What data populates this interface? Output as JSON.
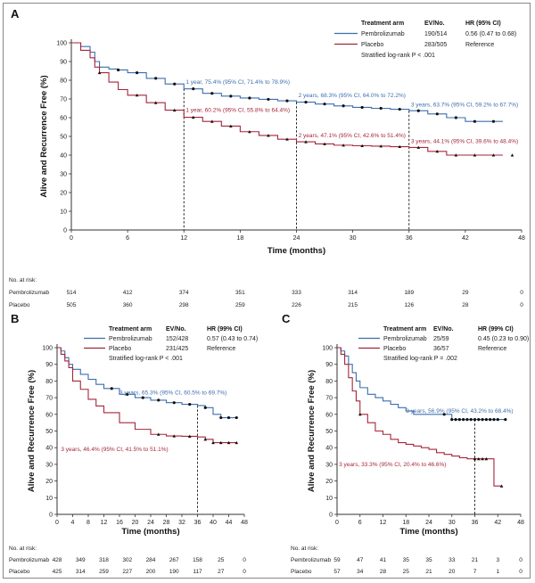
{
  "colors": {
    "pembro": "#3c6eac",
    "placebo": "#a5263a",
    "axis": "#333333",
    "censor": "#111111"
  },
  "chart_data": [
    {
      "panel": "A",
      "type": "line",
      "title": "",
      "xlabel": "Time (months)",
      "ylabel": "Alive and Recurrence Free (%)",
      "xlim": [
        0,
        48
      ],
      "ylim": [
        0,
        100
      ],
      "xticks": [
        0,
        6,
        12,
        18,
        24,
        30,
        36,
        42,
        48
      ],
      "yticks": [
        0,
        10,
        20,
        30,
        40,
        50,
        60,
        70,
        80,
        90,
        100
      ],
      "xtick_labels": [
        "0",
        "6",
        "12",
        "18",
        "24",
        "30",
        "36",
        "42",
        "48"
      ],
      "ytick_labels": [
        "0",
        "10",
        "20",
        "30",
        "40",
        "50",
        "60",
        "70",
        "80",
        "90",
        "100"
      ],
      "legend": {
        "headers": [
          "Treatment arm",
          "EV/No.",
          "HR (95% CI)"
        ],
        "rows": [
          {
            "name": "Pembrolizumab",
            "ev": "190/514",
            "hr": "0.56 (0.47 to 0.68)"
          },
          {
            "name": "Placebo",
            "ev": "283/505",
            "hr": "Reference"
          }
        ],
        "test": "Stratified log-rank P < .001"
      },
      "series": [
        {
          "name": "Pembrolizumab",
          "color_key": "pembro",
          "x": [
            0,
            1,
            2,
            2.5,
            3,
            4,
            5,
            6,
            8,
            10,
            12,
            14,
            16,
            18,
            20,
            22,
            24,
            26,
            28,
            30,
            32,
            34,
            36,
            38,
            40,
            42,
            44,
            46
          ],
          "y": [
            100,
            98,
            95,
            90,
            87,
            86,
            85.5,
            84,
            81,
            78,
            75.4,
            73,
            71.5,
            70.5,
            69.8,
            69,
            68.3,
            67.3,
            66.3,
            65.5,
            65,
            64.5,
            63.7,
            62,
            60,
            58,
            58,
            58
          ],
          "censor_x": [
            5,
            7,
            9,
            11,
            13,
            15,
            17,
            19,
            21,
            23,
            25,
            27,
            29,
            31,
            33,
            35,
            37,
            39,
            41,
            43,
            45
          ]
        },
        {
          "name": "Placebo",
          "color_key": "placebo",
          "x": [
            0,
            1,
            2,
            2.5,
            3,
            4,
            5,
            6,
            8,
            10,
            12,
            14,
            16,
            18,
            20,
            22,
            24,
            26,
            28,
            30,
            32,
            34,
            36,
            38,
            40,
            42,
            44,
            46
          ],
          "y": [
            100,
            96,
            92,
            87,
            84,
            79,
            75,
            72,
            68,
            64,
            60.2,
            58,
            55.5,
            52.5,
            50.5,
            48.5,
            47.1,
            46,
            45.3,
            45,
            44.8,
            44.5,
            44.1,
            42,
            40,
            40,
            40,
            40
          ],
          "censor_x": [
            3,
            7,
            9,
            11,
            13,
            15,
            17,
            19,
            21,
            23,
            25,
            27,
            29,
            31,
            33,
            35,
            37,
            39,
            41,
            43,
            45,
            47
          ]
        }
      ],
      "marks": [
        12,
        24,
        36
      ],
      "annotations": [
        {
          "text": "1 year, 75.4% (95% CI, 71.4% to 78.9%)",
          "x": 12.2,
          "y": 78,
          "series": "pembro"
        },
        {
          "text": "2 years, 68.3% (95% CI, 64.0% to 72.2%)",
          "x": 24.2,
          "y": 71,
          "series": "pembro"
        },
        {
          "text": "3 years, 63.7% (95% CI, 59.2% to 67.7%)",
          "x": 36.2,
          "y": 66,
          "series": "pembro"
        },
        {
          "text": "1 year, 60.2% (95% CI, 55.8% to 64.4%)",
          "x": 12.2,
          "y": 63,
          "series": "placebo"
        },
        {
          "text": "2 years, 47.1% (95% CI, 42.6% to 51.4%)",
          "x": 24.2,
          "y": 49.5,
          "series": "placebo"
        },
        {
          "text": "3 years, 44.1% (95% CI, 39.6% to 48.4%)",
          "x": 36.2,
          "y": 46.5,
          "series": "placebo"
        }
      ],
      "risk_table": {
        "title": "No. at risk:",
        "rows": [
          {
            "name": "Pembrolizumab",
            "values": [
              "514",
              "412",
              "374",
              "351",
              "333",
              "314",
              "189",
              "29",
              "0"
            ]
          },
          {
            "name": "Placebo",
            "values": [
              "505",
              "360",
              "298",
              "259",
              "226",
              "215",
              "126",
              "28",
              "0"
            ]
          }
        ]
      }
    },
    {
      "panel": "B",
      "type": "line",
      "title": "",
      "xlabel": "Time (months)",
      "ylabel": "Alive and Recurrence Free (%)",
      "xlim": [
        0,
        48
      ],
      "ylim": [
        0,
        100
      ],
      "xticks": [
        0,
        4,
        8,
        12,
        16,
        20,
        24,
        28,
        32,
        36,
        40,
        44,
        48
      ],
      "yticks": [
        0,
        10,
        20,
        30,
        40,
        50,
        60,
        70,
        80,
        90,
        100
      ],
      "xtick_labels": [
        "0",
        "4",
        "8",
        "12",
        "16",
        "20",
        "24",
        "28",
        "32",
        "36",
        "40",
        "44",
        "48"
      ],
      "ytick_labels": [
        "0",
        "10",
        "20",
        "30",
        "40",
        "50",
        "60",
        "70",
        "80",
        "90",
        "100"
      ],
      "legend": {
        "headers": [
          "Treatment arm",
          "EV/No.",
          "HR (99% CI)"
        ],
        "rows": [
          {
            "name": "Pembrolizumab",
            "ev": "152/428",
            "hr": "0.57 (0.43 to 0.74)"
          },
          {
            "name": "Placebo",
            "ev": "231/425",
            "hr": "Reference"
          }
        ],
        "test": "Stratified log-rank P < .001"
      },
      "series": [
        {
          "name": "Pembrolizumab",
          "color_key": "pembro",
          "x": [
            0,
            1,
            2,
            3,
            4,
            6,
            8,
            10,
            12,
            16,
            20,
            24,
            28,
            32,
            36,
            38,
            40,
            42,
            44,
            46
          ],
          "y": [
            100,
            98,
            94,
            90,
            87,
            84,
            81,
            78,
            75.5,
            72,
            70,
            68.5,
            67,
            66,
            65.3,
            64,
            60,
            58,
            58,
            58
          ],
          "censor_x": [
            14,
            18,
            22,
            26,
            30,
            34,
            38,
            42,
            44,
            46
          ]
        },
        {
          "name": "Placebo",
          "color_key": "placebo",
          "x": [
            0,
            1,
            2,
            3,
            4,
            6,
            8,
            10,
            12,
            16,
            20,
            24,
            28,
            32,
            36,
            38,
            40,
            42,
            44,
            46
          ],
          "y": [
            100,
            96,
            92,
            88,
            80,
            75,
            69,
            65,
            61,
            55,
            51,
            48,
            47,
            46.8,
            46.4,
            45,
            43,
            43,
            43,
            43
          ],
          "censor_x": [
            26,
            30,
            34,
            38,
            40,
            42,
            44,
            46
          ]
        }
      ],
      "marks": [
        36
      ],
      "annotations": [
        {
          "text": "3 years, 65.3% (95% CI, 60.5% to 69.7%)",
          "x": 16,
          "y": 72,
          "series": "pembro"
        },
        {
          "text": "3 years, 46.4% (95% CI, 41.5% to 51.1%)",
          "x": 1,
          "y": 38,
          "series": "placebo"
        }
      ],
      "risk_table": {
        "title": "No. at risk:",
        "rows": [
          {
            "name": "Pembrolizumab",
            "values": [
              "428",
              "349",
              "318",
              "302",
              "284",
              "267",
              "158",
              "25",
              "0"
            ]
          },
          {
            "name": "Placebo",
            "values": [
              "425",
              "314",
              "259",
              "227",
              "200",
              "190",
              "117",
              "27",
              "0"
            ]
          }
        ]
      }
    },
    {
      "panel": "C",
      "type": "line",
      "title": "",
      "xlabel": "Time (months)",
      "ylabel": "Alive and Recurrence Free (%)",
      "xlim": [
        0,
        48
      ],
      "ylim": [
        0,
        100
      ],
      "xticks": [
        0,
        6,
        12,
        18,
        24,
        30,
        36,
        42,
        48
      ],
      "yticks": [
        0,
        10,
        20,
        30,
        40,
        50,
        60,
        70,
        80,
        90,
        100
      ],
      "xtick_labels": [
        "0",
        "6",
        "12",
        "18",
        "24",
        "30",
        "36",
        "42",
        "48"
      ],
      "ytick_labels": [
        "0",
        "10",
        "20",
        "30",
        "40",
        "50",
        "60",
        "70",
        "80",
        "90",
        "100"
      ],
      "legend": {
        "headers": [
          "Treatment arm",
          "EV/No.",
          "HR (99% CI)"
        ],
        "rows": [
          {
            "name": "Pembrolizumab",
            "ev": "25/59",
            "hr": "0.45 (0.23 to 0.90)"
          },
          {
            "name": "Placebo",
            "ev": "36/57",
            "hr": "Reference"
          }
        ],
        "test": "Stratified log-rank P = .002"
      },
      "series": [
        {
          "name": "Pembrolizumab",
          "color_key": "pembro",
          "x": [
            0,
            1,
            2,
            3,
            4,
            5,
            6,
            8,
            10,
            12,
            14,
            16,
            18,
            20,
            24,
            28,
            30,
            34,
            36,
            40,
            44
          ],
          "y": [
            100,
            98,
            95,
            90,
            85,
            80,
            76,
            72,
            70,
            68,
            66,
            64,
            62,
            60,
            60,
            60,
            56.9,
            56.9,
            56.9,
            56.9,
            56.9
          ],
          "censor_x": [
            28,
            30,
            31,
            32,
            33,
            34,
            35,
            36,
            37,
            38,
            39,
            40,
            41,
            42,
            44
          ]
        },
        {
          "name": "Placebo",
          "color_key": "placebo",
          "x": [
            0,
            1,
            2,
            3,
            4,
            5,
            6,
            8,
            10,
            12,
            14,
            16,
            18,
            20,
            22,
            24,
            26,
            28,
            30,
            32,
            34,
            36,
            40,
            41,
            43
          ],
          "y": [
            100,
            96,
            90,
            82,
            74,
            68,
            60,
            55,
            50,
            48,
            45,
            43,
            42,
            41,
            40,
            39,
            37,
            36,
            35,
            34,
            33.3,
            33.3,
            33.3,
            17,
            17
          ],
          "censor_x": [
            6,
            36,
            37,
            38,
            39,
            43
          ]
        }
      ],
      "marks": [
        36
      ],
      "annotations": [
        {
          "text": "3 years, 56.9% (95% CI, 43.2% to 68.4%)",
          "x": 18,
          "y": 61,
          "series": "pembro"
        },
        {
          "text": "3 years, 33.3% (95% CI, 20.4% to 46.6%)",
          "x": 0.5,
          "y": 29,
          "series": "placebo"
        }
      ],
      "risk_table": {
        "title": "No. at risk:",
        "rows": [
          {
            "name": "Pembrolizumab",
            "values": [
              "59",
              "47",
              "41",
              "35",
              "35",
              "33",
              "21",
              "3",
              "0"
            ]
          },
          {
            "name": "Placebo",
            "values": [
              "57",
              "34",
              "28",
              "25",
              "21",
              "20",
              "7",
              "1",
              "0"
            ]
          }
        ]
      }
    }
  ]
}
